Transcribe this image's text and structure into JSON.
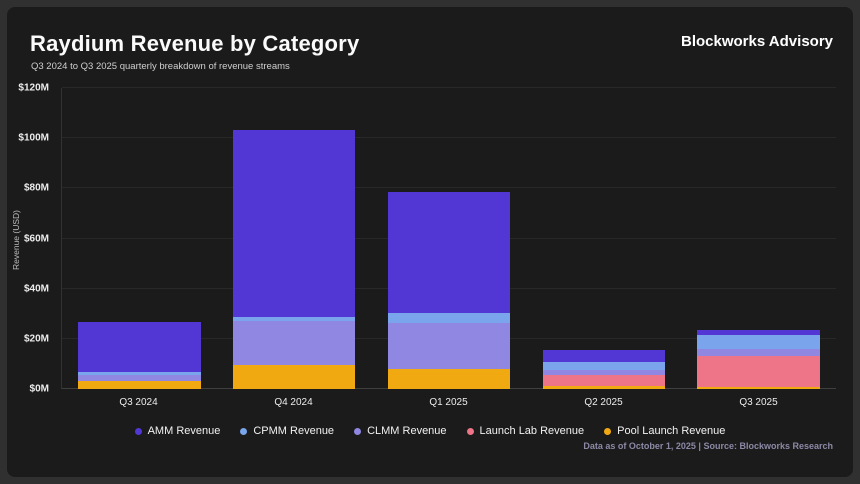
{
  "header": {
    "title": "Raydium Revenue by Category",
    "subtitle": "Q3 2024 to Q3 2025 quarterly breakdown of revenue streams",
    "brand": "Blockworks Advisory"
  },
  "footer": {
    "note": "Data as of October 1, 2025 | Source: Blockworks Research"
  },
  "chart_data": {
    "type": "bar",
    "stacked": true,
    "title": "Raydium Revenue by Category",
    "subtitle": "Q3 2024 to Q3 2025 quarterly breakdown of revenue streams",
    "categories": [
      "Q3 2024",
      "Q4 2024",
      "Q1 2025",
      "Q2 2025",
      "Q3 2025"
    ],
    "series": [
      {
        "name": "AMM Revenue",
        "color": "#5237d4",
        "values": [
          20.3,
          74.4,
          48.2,
          4.8,
          2.0
        ]
      },
      {
        "name": "CPMM Revenue",
        "color": "#7aa5ec",
        "values": [
          1.2,
          1.6,
          4.0,
          3.2,
          5.6
        ]
      },
      {
        "name": "CLMM Revenue",
        "color": "#8f87e2",
        "values": [
          2.4,
          17.9,
          18.7,
          2.0,
          2.8
        ]
      },
      {
        "name": "Launch Lab Revenue",
        "color": "#ee7488",
        "values": [
          0,
          0,
          0,
          4.4,
          12.7
        ]
      },
      {
        "name": "Pool Launch Revenue",
        "color": "#f1a912",
        "values": [
          3.0,
          9.4,
          7.8,
          1.0,
          0.6
        ]
      }
    ],
    "stack_order_bottom_to_top": [
      "Pool Launch Revenue",
      "Launch Lab Revenue",
      "CLMM Revenue",
      "CPMM Revenue",
      "AMM Revenue"
    ],
    "totals": [
      27.0,
      103.3,
      78.7,
      15.4,
      23.7
    ],
    "xlabel": "",
    "ylabel": "Revenue (USD)",
    "ylim": [
      0,
      120
    ],
    "yticks": [
      "$0M",
      "$20M",
      "$40M",
      "$60M",
      "$80M",
      "$100M",
      "$120M"
    ],
    "grid": true,
    "legend_position": "bottom"
  }
}
